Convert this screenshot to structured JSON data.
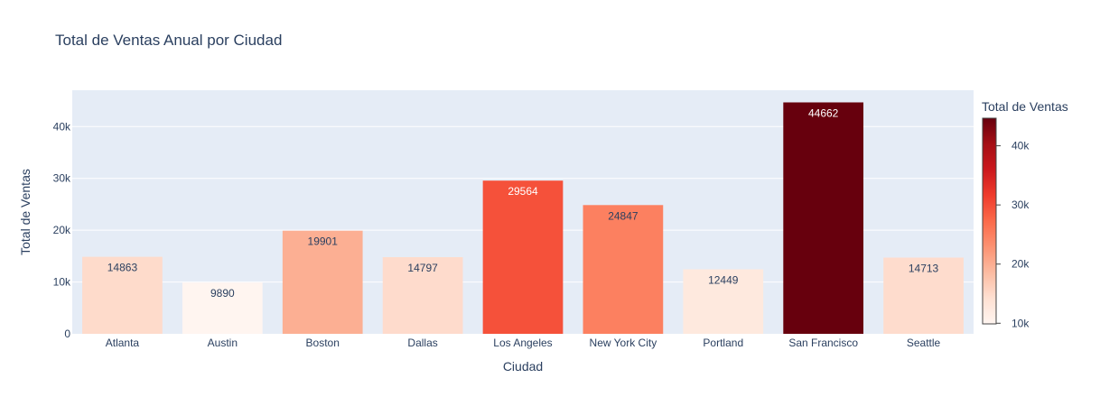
{
  "chart_data": {
    "type": "bar",
    "title": "Total de Ventas Anual por Ciudad",
    "xlabel": "Ciudad",
    "ylabel": "Total de Ventas",
    "categories": [
      "Atlanta",
      "Austin",
      "Boston",
      "Dallas",
      "Los Angeles",
      "New York City",
      "Portland",
      "San Francisco",
      "Seattle"
    ],
    "values": [
      14863,
      9890,
      19901,
      14797,
      29564,
      24847,
      12449,
      44662,
      14713
    ],
    "ylim": [
      0,
      47012
    ],
    "yticks": [
      0,
      10000,
      20000,
      30000,
      40000
    ],
    "ytick_labels": [
      "0",
      "10k",
      "20k",
      "30k",
      "40k"
    ],
    "grid": true,
    "colorbar": {
      "title": "Total de Ventas",
      "range": [
        9890,
        44662
      ],
      "ticks": [
        10000,
        20000,
        30000,
        40000
      ],
      "tick_labels": [
        "10k",
        "20k",
        "30k",
        "40k"
      ],
      "colorscale": [
        "#fff5f0",
        "#fee0d2",
        "#fcbba1",
        "#fc9272",
        "#fb6a4a",
        "#ef3b2c",
        "#cb181d",
        "#a50f15",
        "#67000d"
      ]
    }
  }
}
